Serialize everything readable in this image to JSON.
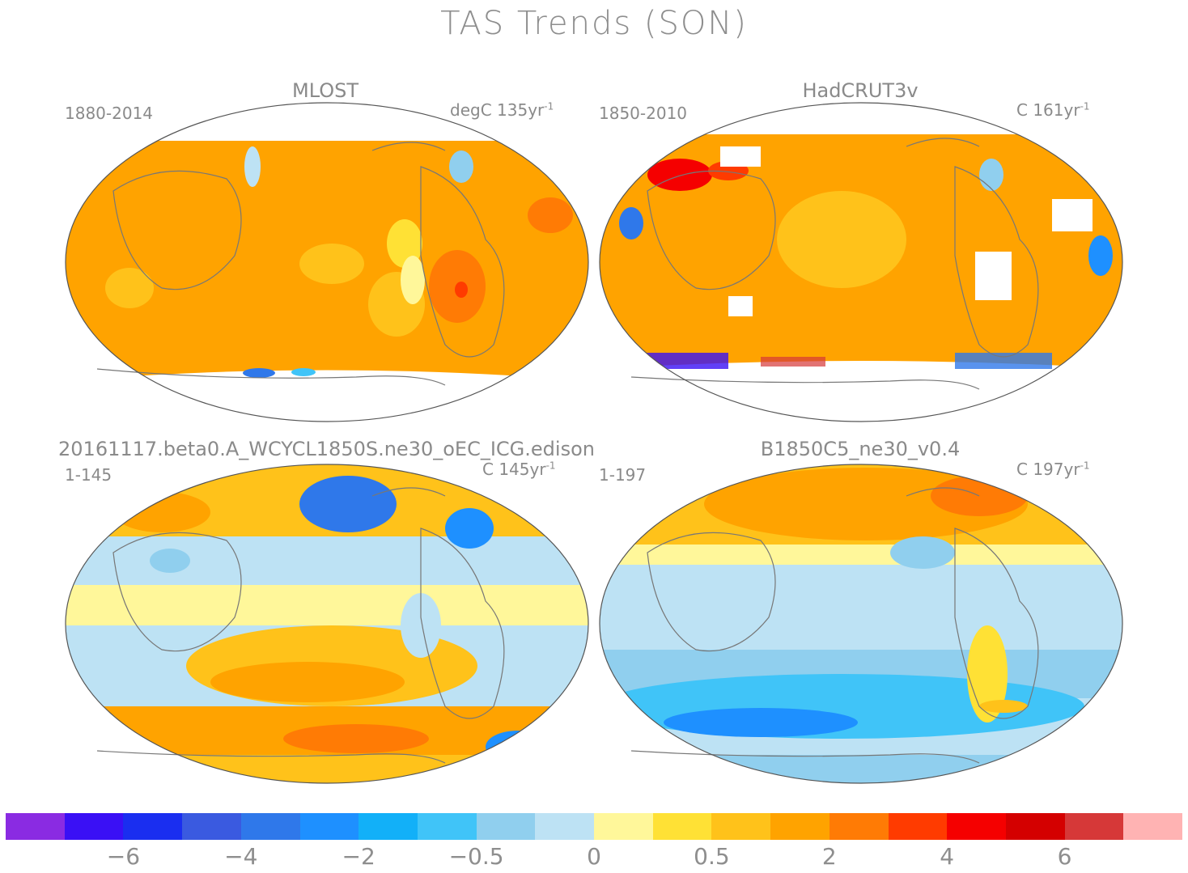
{
  "title": "TAS Trends (SON)",
  "panels": [
    {
      "id": "mlost",
      "name": "MLOST",
      "period": "1880-2014",
      "units": "degC",
      "rate": "135",
      "rate_unit": "yr",
      "sup": "-1"
    },
    {
      "id": "hadcrut",
      "name": "HadCRUT3v",
      "period": "1850-2010",
      "units": "C",
      "rate": "161",
      "rate_unit": "yr",
      "sup": "-1"
    },
    {
      "id": "beta0",
      "name": "20161117.beta0.A_WCYCL1850S.ne30_oEC_ICG.edison",
      "period": "1-145",
      "units": "C",
      "rate": "145",
      "rate_unit": "yr",
      "sup": "-1"
    },
    {
      "id": "b1850",
      "name": "B1850C5_ne30_v0.4",
      "period": "1-197",
      "units": "C",
      "rate": "197",
      "rate_unit": "yr",
      "sup": "-1"
    }
  ],
  "colorbar": {
    "colors": [
      "#8a2be2",
      "#3a10f5",
      "#1a2ef0",
      "#3a5ae0",
      "#2f78ea",
      "#1e90ff",
      "#12b0f8",
      "#40c4f8",
      "#90cfee",
      "#bde2f4",
      "#fff79a",
      "#ffe135",
      "#ffc21a",
      "#ffa300",
      "#ff7b05",
      "#ff3b00",
      "#f50000",
      "#d40000",
      "#d63838",
      "#ffb3b3"
    ],
    "tick_labels": [
      "−6",
      "−4",
      "−2",
      "−0.5",
      "0",
      "0.5",
      "2",
      "4",
      "6"
    ]
  }
}
